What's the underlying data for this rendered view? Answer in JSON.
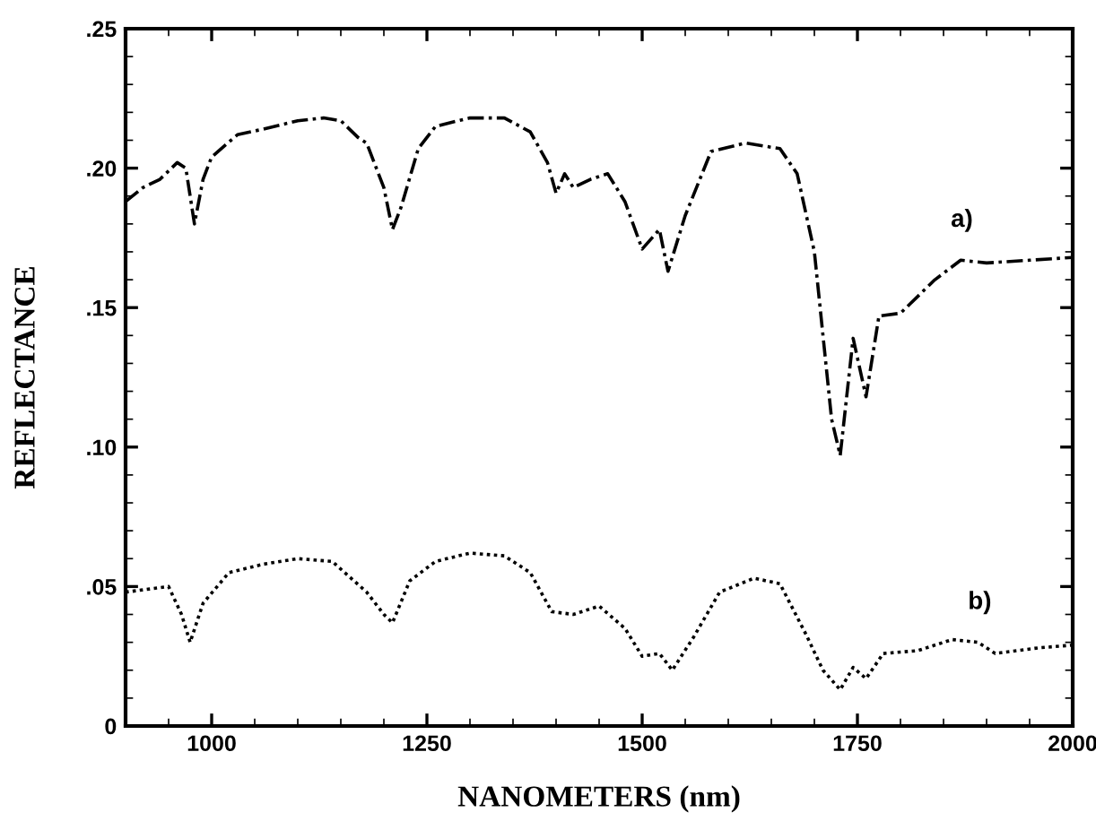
{
  "chart_data": {
    "type": "line",
    "xlabel": "NANOMETERS (nm)",
    "ylabel": "REFLECTANCE",
    "xlim": [
      900,
      2000
    ],
    "xticks": [
      1000,
      1250,
      1500,
      1750,
      2000
    ],
    "ylim": [
      0,
      0.25
    ],
    "yticks": [
      {
        "value": 0,
        "label": "0"
      },
      {
        "value": 0.05,
        "label": ".05"
      },
      {
        "value": 0.1,
        "label": ".10"
      },
      {
        "value": 0.15,
        "label": ".15"
      },
      {
        "value": 0.2,
        "label": ".20"
      },
      {
        "value": 0.25,
        "label": ".25"
      }
    ],
    "grid": false,
    "legend": false,
    "marker": "none",
    "series": [
      {
        "name": "a)",
        "color": "#000000",
        "line_style": "dashed",
        "x": [
          900,
          920,
          940,
          960,
          970,
          980,
          990,
          1000,
          1030,
          1060,
          1100,
          1130,
          1150,
          1170,
          1180,
          1200,
          1210,
          1220,
          1240,
          1260,
          1300,
          1340,
          1370,
          1390,
          1400,
          1410,
          1420,
          1440,
          1460,
          1480,
          1500,
          1520,
          1530,
          1550,
          1580,
          1620,
          1660,
          1680,
          1700,
          1720,
          1730,
          1745,
          1760,
          1775,
          1800,
          1840,
          1870,
          1900,
          1950,
          2000
        ],
        "values": [
          0.188,
          0.193,
          0.196,
          0.202,
          0.2,
          0.18,
          0.196,
          0.204,
          0.212,
          0.214,
          0.217,
          0.218,
          0.217,
          0.211,
          0.209,
          0.193,
          0.178,
          0.186,
          0.207,
          0.215,
          0.218,
          0.218,
          0.213,
          0.202,
          0.191,
          0.198,
          0.193,
          0.196,
          0.198,
          0.188,
          0.171,
          0.178,
          0.163,
          0.183,
          0.206,
          0.209,
          0.207,
          0.198,
          0.17,
          0.11,
          0.097,
          0.139,
          0.118,
          0.147,
          0.148,
          0.16,
          0.167,
          0.166,
          0.167,
          0.168
        ]
      },
      {
        "name": "b)",
        "color": "#000000",
        "line_style": "dotted",
        "x": [
          900,
          950,
          965,
          975,
          990,
          1020,
          1060,
          1100,
          1140,
          1180,
          1200,
          1210,
          1230,
          1260,
          1300,
          1340,
          1370,
          1395,
          1420,
          1450,
          1480,
          1500,
          1520,
          1535,
          1560,
          1590,
          1630,
          1660,
          1690,
          1710,
          1730,
          1745,
          1760,
          1780,
          1820,
          1860,
          1890,
          1910,
          1960,
          2000
        ],
        "values": [
          0.048,
          0.05,
          0.04,
          0.03,
          0.044,
          0.055,
          0.058,
          0.06,
          0.059,
          0.048,
          0.04,
          0.037,
          0.052,
          0.059,
          0.062,
          0.061,
          0.055,
          0.041,
          0.04,
          0.043,
          0.035,
          0.025,
          0.026,
          0.02,
          0.032,
          0.048,
          0.053,
          0.051,
          0.033,
          0.02,
          0.013,
          0.021,
          0.017,
          0.026,
          0.027,
          0.031,
          0.03,
          0.026,
          0.028,
          0.029
        ]
      }
    ]
  }
}
